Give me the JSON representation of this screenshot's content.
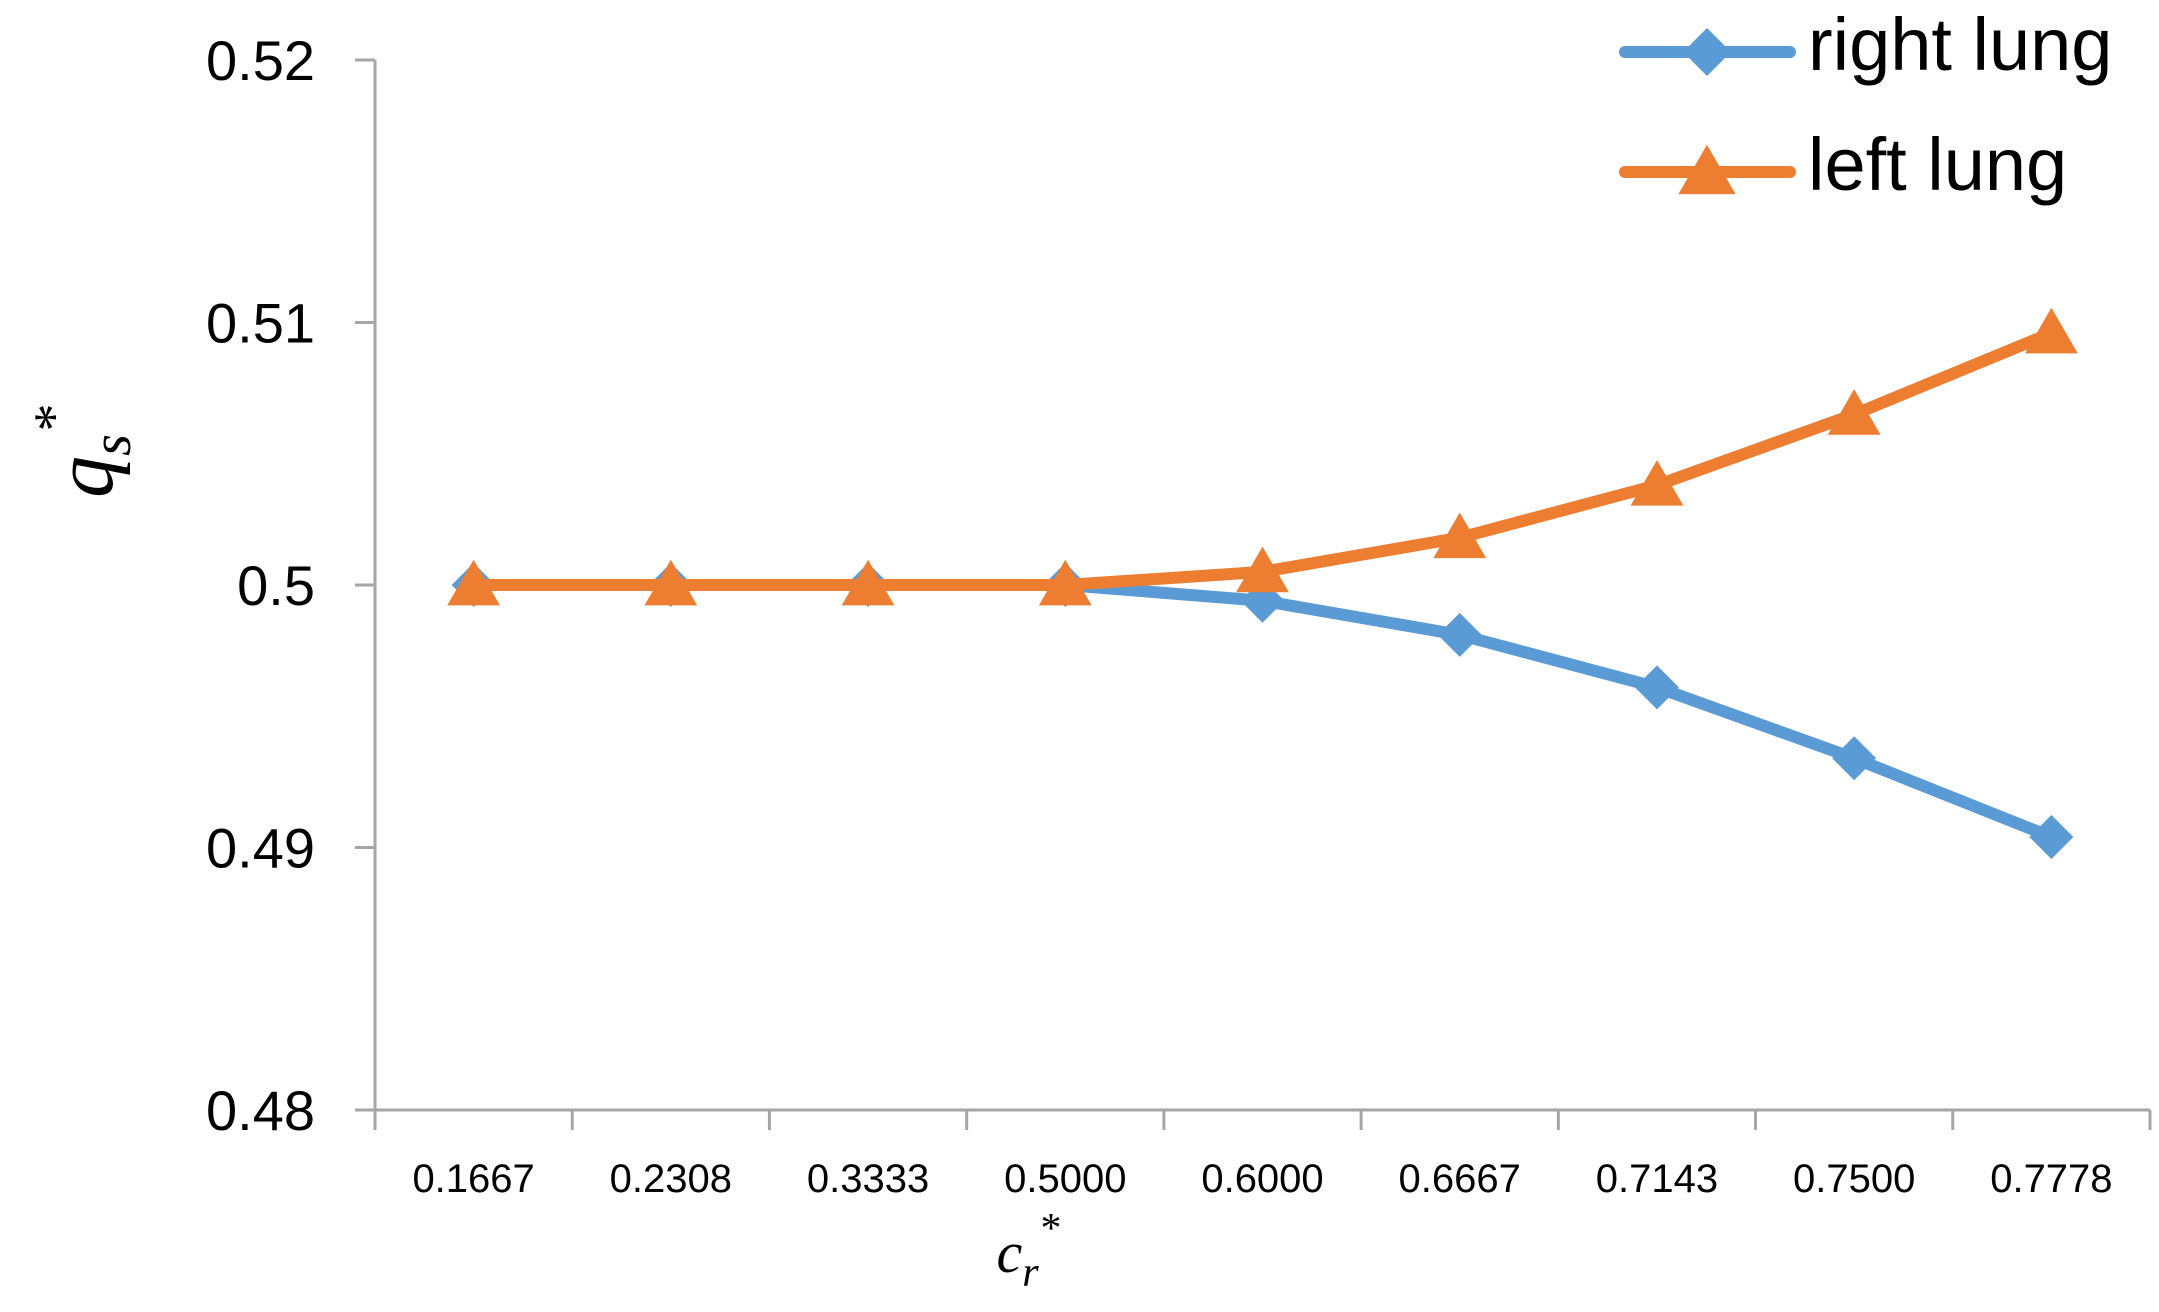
{
  "chart_data": {
    "type": "line",
    "categories": [
      "0.1667",
      "0.2308",
      "0.3333",
      "0.5000",
      "0.6000",
      "0.6667",
      "0.7143",
      "0.7500",
      "0.7778"
    ],
    "series": [
      {
        "name": "right lung",
        "color": "#5B9BD5",
        "marker": "diamond",
        "values": [
          0.5,
          0.5,
          0.5,
          0.5,
          0.4994,
          0.4981,
          0.4961,
          0.4934,
          0.4904
        ]
      },
      {
        "name": "left lung",
        "color": "#ED7D31",
        "marker": "triangle",
        "values": [
          0.5,
          0.5,
          0.5,
          0.5,
          0.5005,
          0.5018,
          0.5038,
          0.5065,
          0.5096
        ]
      }
    ],
    "ylim": [
      0.48,
      0.52
    ],
    "yticks": [
      "0.48",
      "0.49",
      "0.5",
      "0.51",
      "0.52"
    ],
    "xlabel": {
      "base": "c",
      "sub": "r",
      "sup": "*"
    },
    "ylabel": {
      "base": "q",
      "sub": "s",
      "sup": "*"
    },
    "legend_position": "top-right",
    "grid": false
  }
}
